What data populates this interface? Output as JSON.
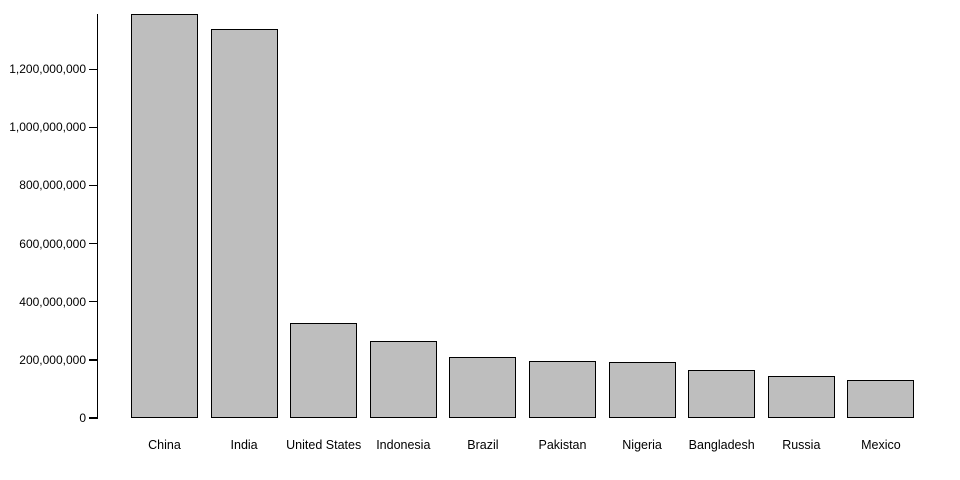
{
  "page": {
    "background": "#ffffff"
  },
  "chart_data": {
    "type": "bar",
    "title": "",
    "xlabel": "",
    "ylabel": "",
    "categories": [
      "China",
      "India",
      "United States",
      "Indonesia",
      "Brazil",
      "Pakistan",
      "Nigeria",
      "Bangladesh",
      "Russia",
      "Mexico"
    ],
    "values": [
      1390000000,
      1340000000,
      326000000,
      264000000,
      210000000,
      197000000,
      191000000,
      165000000,
      144000000,
      130000000
    ],
    "ylim": [
      0,
      1390000000
    ],
    "yticks": [
      0,
      200000000,
      400000000,
      600000000,
      800000000,
      1000000000,
      1200000000
    ],
    "ytick_labels": [
      "0",
      "200,000,000",
      "400,000,000",
      "600,000,000",
      "800,000,000",
      "1,000,000,000",
      "1,200,000,000"
    ],
    "grid": false,
    "legend": false,
    "bar_fill": "#bebebe",
    "bar_border": "#000000",
    "axis_color": "#000000",
    "text_color": "#000000"
  }
}
